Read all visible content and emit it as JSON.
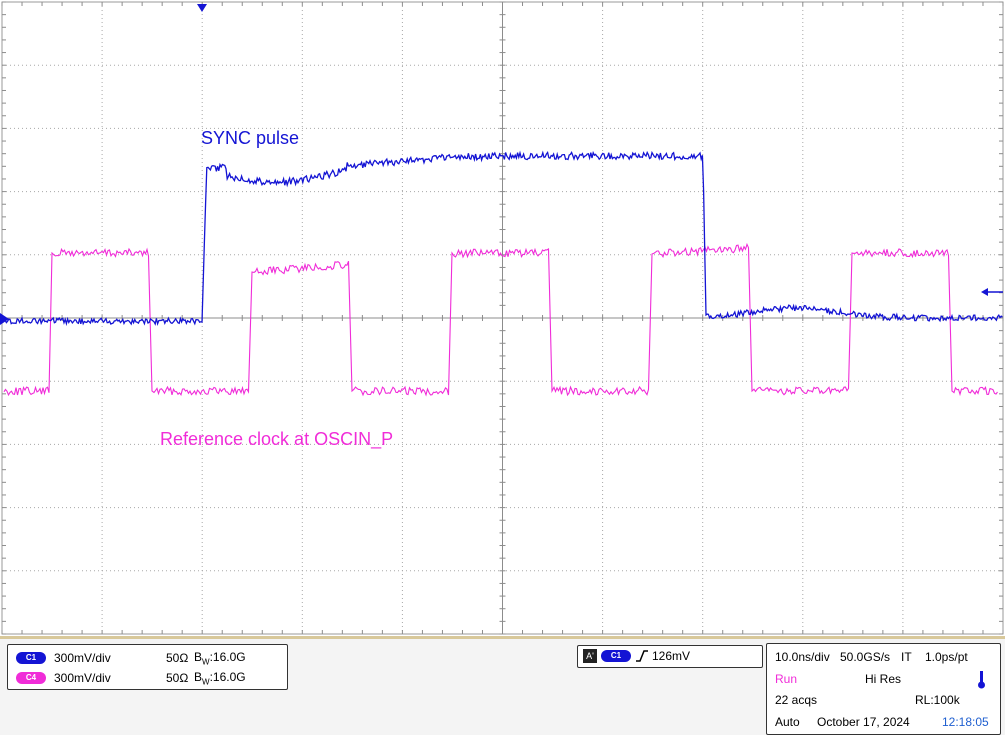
{
  "waveform_labels": {
    "sync": "SYNC pulse",
    "refclk": "Reference clock at OSCIN_P"
  },
  "colors": {
    "ch1": "#1414d4",
    "ch4": "#f02cd8",
    "grid": "#a8a8a8"
  },
  "channels": [
    {
      "id": "C1",
      "scale": "300mV/div",
      "impedance": "50Ω",
      "bw_prefix": "B",
      "bw_sub": "W",
      "bw_value": ":16.0G"
    },
    {
      "id": "C4",
      "scale": "300mV/div",
      "impedance": "50Ω",
      "bw_prefix": "B",
      "bw_sub": "W",
      "bw_value": ":16.0G"
    }
  ],
  "trigger": {
    "mode_badge": "A'",
    "source": "C1",
    "edge_icon": "rising-edge-icon",
    "level": "126mV"
  },
  "timebase": {
    "time_div": "10.0ns/div",
    "sample_rate": "50.0GS/s",
    "mode": "IT",
    "resolution": "1.0ps/pt",
    "run_state": "Run",
    "acq_mode": "Hi Res",
    "acqs": "22 acqs",
    "record_length": "RL:100k",
    "trigger_mode": "Auto",
    "date": "October 17, 2024",
    "time": "12:18:05",
    "status_icon": "thermometer-icon"
  }
}
